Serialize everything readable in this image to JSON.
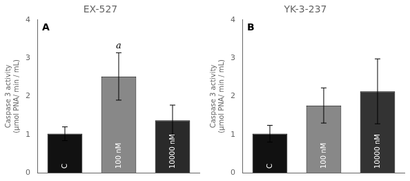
{
  "chart_data": [
    {
      "type": "bar",
      "title": "EX-527",
      "categories": [
        "C",
        "100 nM",
        "10000 nM"
      ],
      "values": [
        1.02,
        2.52,
        1.37
      ],
      "errors": [
        0.18,
        0.62,
        0.4
      ],
      "colors": [
        "#111111",
        "#888888",
        "#2a2a2a"
      ],
      "ylabel": "Caspase 3 activity\n(μmol PNA/ min / mL)",
      "ylim": [
        0,
        4
      ],
      "yticks": [
        0,
        1,
        2,
        3,
        4
      ],
      "grid": false,
      "tick_labels": "y",
      "annotations": [
        {
          "text": "A"
        },
        {
          "text": "a",
          "category": "100 nM"
        }
      ]
    },
    {
      "type": "bar",
      "title": "YK-3-237",
      "categories": [
        "C",
        "100 nM",
        "10000 nM"
      ],
      "values": [
        1.02,
        1.76,
        2.13
      ],
      "errors": [
        0.22,
        0.46,
        0.85
      ],
      "colors": [
        "#111111",
        "#888888",
        "#333333"
      ],
      "ylabel": "Caspase 3 activity\n(μmol PNA/ min / mL)",
      "ylim": [
        0,
        4
      ],
      "yticks": [
        0,
        1,
        2,
        3,
        4
      ],
      "grid": false,
      "tick_labels": "y",
      "annotations": [
        {
          "text": "B"
        }
      ]
    }
  ]
}
